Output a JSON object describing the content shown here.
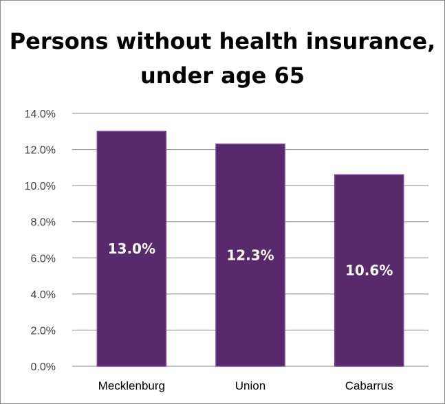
{
  "chart_data": {
    "type": "bar",
    "title": "Persons without health insurance, under age 65",
    "categories": [
      "Mecklenburg",
      "Union",
      "Cabarrus"
    ],
    "values": [
      13.0,
      12.3,
      10.6
    ],
    "data_labels": [
      "13.0%",
      "12.3%",
      "10.6%"
    ],
    "ylim": [
      0,
      14
    ],
    "yticks": [
      0,
      2,
      4,
      6,
      8,
      10,
      12,
      14
    ],
    "ytick_labels": [
      "0.0%",
      "2.0%",
      "4.0%",
      "6.0%",
      "8.0%",
      "10.0%",
      "12.0%",
      "14.0%"
    ],
    "xlabel": "",
    "ylabel": "",
    "grid": true,
    "legend": "none"
  },
  "colors": {
    "bar_fill": "#582a6b",
    "bar_edge": "#7a3ea0",
    "grid": "#8c8c8c"
  }
}
